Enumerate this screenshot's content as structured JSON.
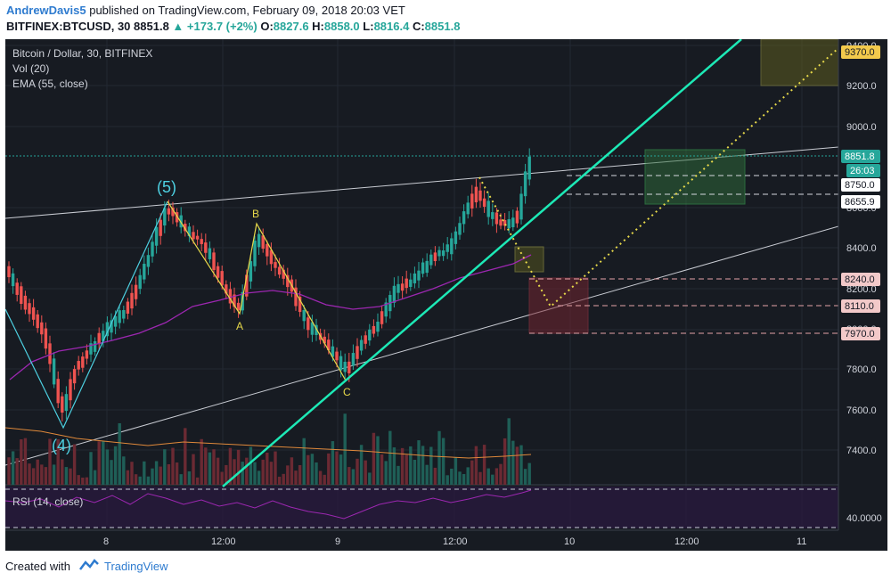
{
  "header": {
    "user": "AndrewDavis5",
    "published_text": "published on TradingView.com, February 09, 2018 20:03 VET",
    "symbol_line": "BITFINEX:BTCUSD, 30",
    "last": "8851.8",
    "change": "+173.7 (+2%)",
    "o_label": "O:",
    "o_value": "8827.6",
    "h_label": "H:",
    "h_value": "8858.0",
    "l_label": "L:",
    "l_value": "8816.4",
    "c_label": "C:",
    "c_value": "8851.8"
  },
  "legend": {
    "title": "Bitcoin / Dollar, 30, BITFINEX",
    "vol": "Vol (20)",
    "ema": "EMA (55, close)",
    "rsi": "RSI (14, close)"
  },
  "price_axis": {
    "ticks": [
      "9400.0",
      "9200.0",
      "9000.0",
      "8600.0",
      "8400.0",
      "8200.0",
      "8000.0",
      "7800.0",
      "7600.0",
      "7400.0"
    ],
    "rsi_tick": "40.0000"
  },
  "price_tags": [
    {
      "text": "9370.0",
      "color": "#f2c94c",
      "text_color": "#131722"
    },
    {
      "text": "8851.8",
      "color": "#26a69a",
      "text_color": "#ffffff"
    },
    {
      "text": "26:03",
      "color": "#26a69a",
      "text_color": "#ffffff"
    },
    {
      "text": "8750.0",
      "color": "#ffffff",
      "text_color": "#131722"
    },
    {
      "text": "8655.9",
      "color": "#ffffff",
      "text_color": "#131722"
    },
    {
      "text": "8240.0",
      "color": "#f2c9c9",
      "text_color": "#131722"
    },
    {
      "text": "8110.0",
      "color": "#f2c9c9",
      "text_color": "#131722"
    },
    {
      "text": "7970.0",
      "color": "#f2c9c9",
      "text_color": "#131722"
    }
  ],
  "time_axis": [
    "8",
    "12:00",
    "9",
    "12:00",
    "10",
    "12:00",
    "11"
  ],
  "wave_labels": {
    "w5": "(5)",
    "w4": "(4)",
    "a": "A",
    "b": "B",
    "c": "C"
  },
  "colors": {
    "up": "#26a69a",
    "down": "#ef5350",
    "ema": "#9c27b0",
    "trend": "#1de9b6",
    "wave": "#e6d84a",
    "bg": "#171b22"
  },
  "footer": {
    "created": "Created with",
    "brand": "TradingView"
  }
}
